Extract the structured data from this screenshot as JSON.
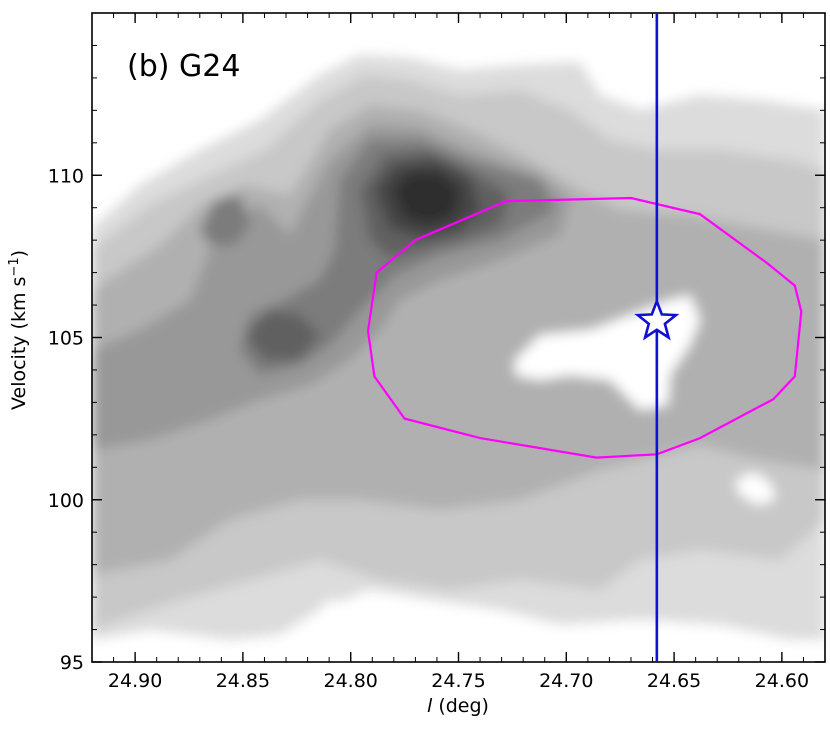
{
  "chart_data": {
    "type": "contour",
    "panel_label": "(b) G24",
    "xlabel_italic": "l",
    "xlabel_rest": " (deg)",
    "ylabel": "Velocity (km s",
    "ylabel_sup": "−1",
    "ylabel_close": ")",
    "xlim": [
      24.92,
      24.58
    ],
    "ylim": [
      95,
      115
    ],
    "x_axis_reversed": true,
    "x_ticks": [
      24.9,
      24.85,
      24.8,
      24.75,
      24.7,
      24.65,
      24.6
    ],
    "x_tick_labels": [
      "24.90",
      "24.85",
      "24.80",
      "24.75",
      "24.70",
      "24.65",
      "24.60"
    ],
    "y_ticks": [
      95,
      100,
      105,
      110
    ],
    "y_tick_labels": [
      "95",
      "100",
      "105",
      "110"
    ],
    "contour_colormap": "grayscale",
    "vertical_line": {
      "x": 24.658,
      "color": "#1010d0"
    },
    "star": {
      "x": 24.658,
      "y": 105.5,
      "color": "#1010d0"
    },
    "ellipse": {
      "color": "#ff00ff",
      "points": [
        [
          24.792,
          105.2
        ],
        [
          24.788,
          107.0
        ],
        [
          24.77,
          108.0
        ],
        [
          24.728,
          109.2
        ],
        [
          24.67,
          109.3
        ],
        [
          24.638,
          108.8
        ],
        [
          24.607,
          107.3
        ],
        [
          24.594,
          106.6
        ],
        [
          24.591,
          105.8
        ],
        [
          24.594,
          103.8
        ],
        [
          24.604,
          103.1
        ],
        [
          24.638,
          101.9
        ],
        [
          24.658,
          101.4
        ],
        [
          24.686,
          101.3
        ],
        [
          24.74,
          101.9
        ],
        [
          24.775,
          102.5
        ],
        [
          24.789,
          103.8
        ],
        [
          24.792,
          105.2
        ]
      ]
    },
    "colors": {
      "level1": "#dcdcdc",
      "level2": "#c8c8c8",
      "level3": "#b0b0b0",
      "level4": "#989898",
      "level5": "#7c7c7c",
      "level6": "#606060",
      "level7": "#444444",
      "level8": "#2e2e2e"
    }
  }
}
